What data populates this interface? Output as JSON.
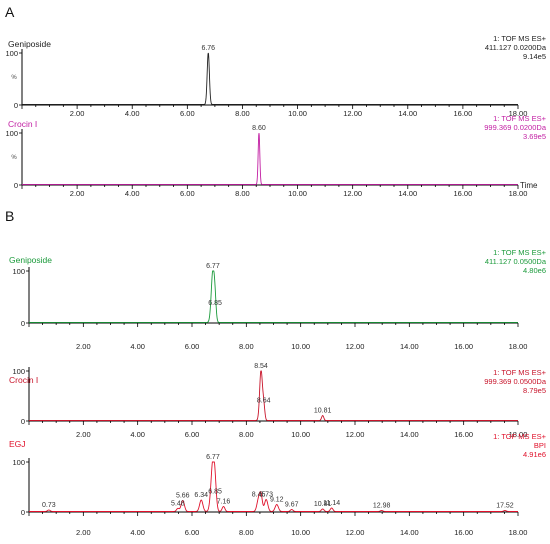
{
  "figure": {
    "panel_labels": [
      "A",
      "B"
    ]
  },
  "chart_data": [
    {
      "type": "line",
      "panel": "A",
      "series_label": "Geniposide",
      "info": [
        "1: TOF MS ES+",
        "411.127 0.0200Da",
        "9.14e5"
      ],
      "ylabel": "%",
      "xlabel": "",
      "xlim": [
        0,
        18
      ],
      "ylim": [
        0,
        100
      ],
      "x_ticks": [
        "2.00",
        "4.00",
        "6.00",
        "8.00",
        "10.00",
        "12.00",
        "14.00",
        "16.00",
        "18.00"
      ],
      "y_ticks": [
        "0",
        "100"
      ],
      "color": "#222222",
      "baseline": 1,
      "peaks": [
        {
          "x": 6.76,
          "y": 100,
          "label": "6.76",
          "w": 0.04
        }
      ]
    },
    {
      "type": "line",
      "panel": "A",
      "series_label": "Crocin I",
      "info": [
        "1: TOF MS ES+",
        "999.369 0.0200Da",
        "3.69e5"
      ],
      "ylabel": "%",
      "xlabel": "Time",
      "xlim": [
        0,
        18
      ],
      "ylim": [
        0,
        100
      ],
      "x_ticks": [
        "2.00",
        "4.00",
        "6.00",
        "8.00",
        "10.00",
        "12.00",
        "14.00",
        "16.00",
        "18.00"
      ],
      "y_ticks": [
        "0",
        "100"
      ],
      "color": "#c21fa3",
      "baseline": 1,
      "peaks": [
        {
          "x": 8.6,
          "y": 100,
          "label": "8.60",
          "w": 0.03
        }
      ]
    },
    {
      "type": "line",
      "panel": "B",
      "series_label": "Geniposide",
      "info": [
        "1: TOF MS ES+",
        "411.127 0.0500Da",
        "4.80e6"
      ],
      "ylabel": "",
      "xlabel": "",
      "xlim": [
        0,
        18
      ],
      "ylim": [
        0,
        100
      ],
      "x_ticks": [
        "2.00",
        "4.00",
        "6.00",
        "8.00",
        "10.00",
        "12.00",
        "14.00",
        "16.00",
        "18.00"
      ],
      "y_ticks": [
        "0",
        "100"
      ],
      "color": "#1a9a3a",
      "baseline": 1,
      "peaks": [
        {
          "x": 6.77,
          "y": 100,
          "label": "6.77",
          "w": 0.06
        },
        {
          "x": 6.85,
          "y": 28,
          "label": "6.85",
          "w": 0.04
        }
      ]
    },
    {
      "type": "line",
      "panel": "B",
      "series_label": "Crocin I",
      "info": [
        "1: TOF MS ES+",
        "999.369 0.0500Da",
        "8.79e5"
      ],
      "ylabel": "",
      "xlabel": "",
      "xlim": [
        0,
        18
      ],
      "ylim": [
        0,
        100
      ],
      "x_ticks": [
        "2.00",
        "4.00",
        "6.00",
        "8.00",
        "10.00",
        "12.00",
        "14.00",
        "16.00",
        "18.00"
      ],
      "y_ticks": [
        "0",
        "100"
      ],
      "color": "#c8142a",
      "baseline": 1,
      "peaks": [
        {
          "x": 8.54,
          "y": 100,
          "label": "8.54",
          "w": 0.05
        },
        {
          "x": 8.64,
          "y": 30,
          "label": "8.64",
          "w": 0.04
        },
        {
          "x": 10.81,
          "y": 10,
          "label": "10.81",
          "w": 0.04
        }
      ]
    },
    {
      "type": "line",
      "panel": "B",
      "series_label": "EGJ",
      "info": [
        "1: TOF MS ES+",
        "BPI",
        "4.91e6"
      ],
      "ylabel": "",
      "xlabel": "",
      "xlim": [
        0,
        18
      ],
      "ylim": [
        0,
        100
      ],
      "x_ticks": [
        "2.00",
        "4.00",
        "6.00",
        "8.00",
        "10.00",
        "12.00",
        "14.00",
        "16.00",
        "18.00"
      ],
      "y_ticks": [
        "0",
        "100"
      ],
      "color": "#e0102a",
      "baseline": 1,
      "peaks": [
        {
          "x": 0.73,
          "y": 3,
          "label": "0.73",
          "w": 0.05
        },
        {
          "x": 5.48,
          "y": 6,
          "label": "5.48",
          "w": 0.05
        },
        {
          "x": 5.66,
          "y": 22,
          "label": "5.66",
          "w": 0.06
        },
        {
          "x": 6.34,
          "y": 23,
          "label": "6.34",
          "w": 0.06
        },
        {
          "x": 6.77,
          "y": 100,
          "label": "6.77",
          "w": 0.07
        },
        {
          "x": 6.85,
          "y": 30,
          "label": "6.85",
          "w": 0.05
        },
        {
          "x": 7.16,
          "y": 10,
          "label": "7.16",
          "w": 0.05
        },
        {
          "x": 8.45,
          "y": 24,
          "label": "8.45",
          "w": 0.06
        },
        {
          "x": 8.54,
          "y": 30,
          "label": "",
          "w": 0.05
        },
        {
          "x": 8.73,
          "y": 24,
          "label": "8.73",
          "w": 0.06
        },
        {
          "x": 9.12,
          "y": 14,
          "label": "9.12",
          "w": 0.06
        },
        {
          "x": 9.67,
          "y": 4,
          "label": "9.67",
          "w": 0.05
        },
        {
          "x": 10.81,
          "y": 5,
          "label": "10.81",
          "w": 0.05
        },
        {
          "x": 11.14,
          "y": 7,
          "label": "11.14",
          "w": 0.05
        },
        {
          "x": 12.98,
          "y": 2,
          "label": "12.98",
          "w": 0.05
        },
        {
          "x": 17.52,
          "y": 2,
          "label": "17.52",
          "w": 0.05
        }
      ]
    }
  ]
}
